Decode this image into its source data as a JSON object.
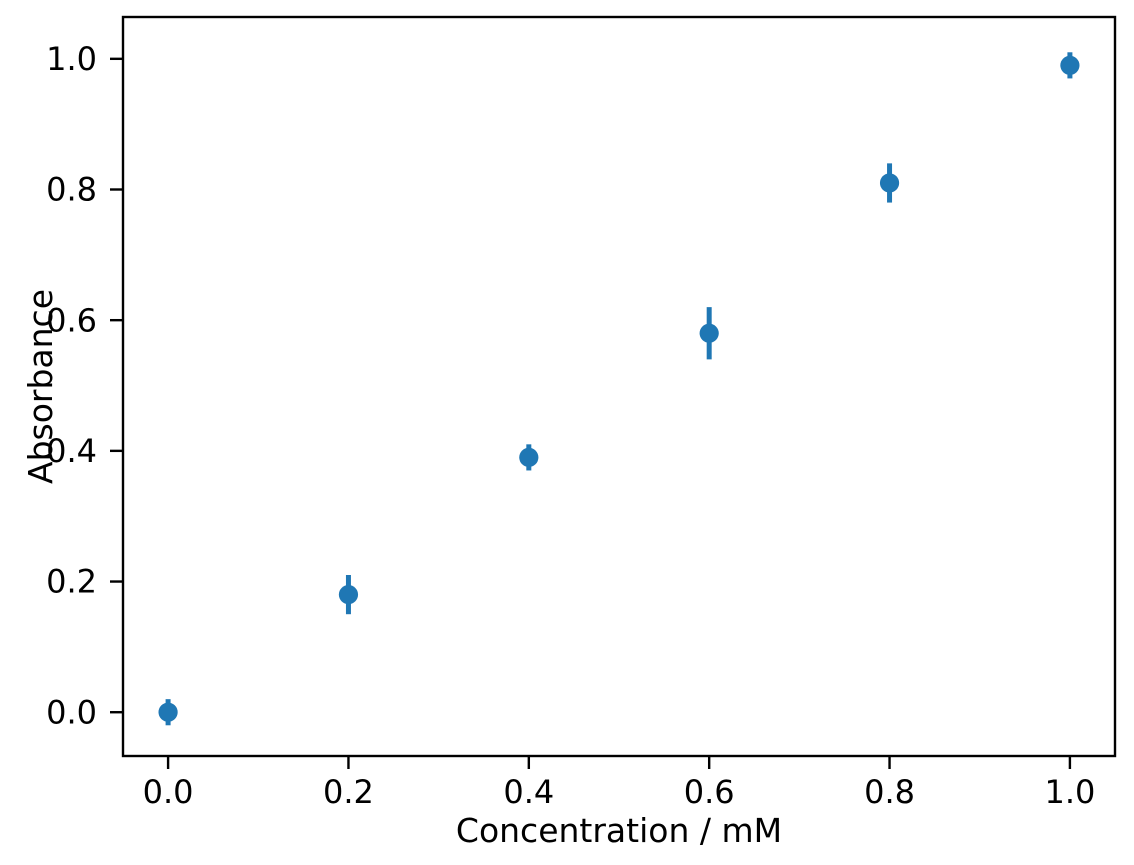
{
  "figure": {
    "background": "#ffffff"
  },
  "chart_data": {
    "type": "scatter",
    "subtype": "errorbar",
    "title": "",
    "xlabel": "Concentration / mM",
    "ylabel": "Absorbance",
    "x": [
      0.0,
      0.2,
      0.4,
      0.6,
      0.8,
      1.0
    ],
    "y": [
      0.0,
      0.18,
      0.39,
      0.58,
      0.81,
      0.99
    ],
    "yerr": [
      0.02,
      0.03,
      0.02,
      0.04,
      0.03,
      0.02
    ],
    "xlim": [
      -0.05,
      1.05
    ],
    "ylim": [
      -0.067,
      1.064
    ],
    "xticks": [
      0.0,
      0.2,
      0.4,
      0.6,
      0.8,
      1.0
    ],
    "yticks": [
      0.0,
      0.2,
      0.4,
      0.6,
      0.8,
      1.0
    ],
    "xtick_labels": [
      "0.0",
      "0.2",
      "0.4",
      "0.6",
      "0.8",
      "1.0"
    ],
    "ytick_labels": [
      "0.0",
      "0.2",
      "0.4",
      "0.6",
      "0.8",
      "1.0"
    ],
    "grid": false,
    "legend": null,
    "marker": "o",
    "marker_color": "#1f77b4",
    "error_bar_color": "#1f77b4",
    "error_caps": false,
    "axes_color": "#000000"
  }
}
